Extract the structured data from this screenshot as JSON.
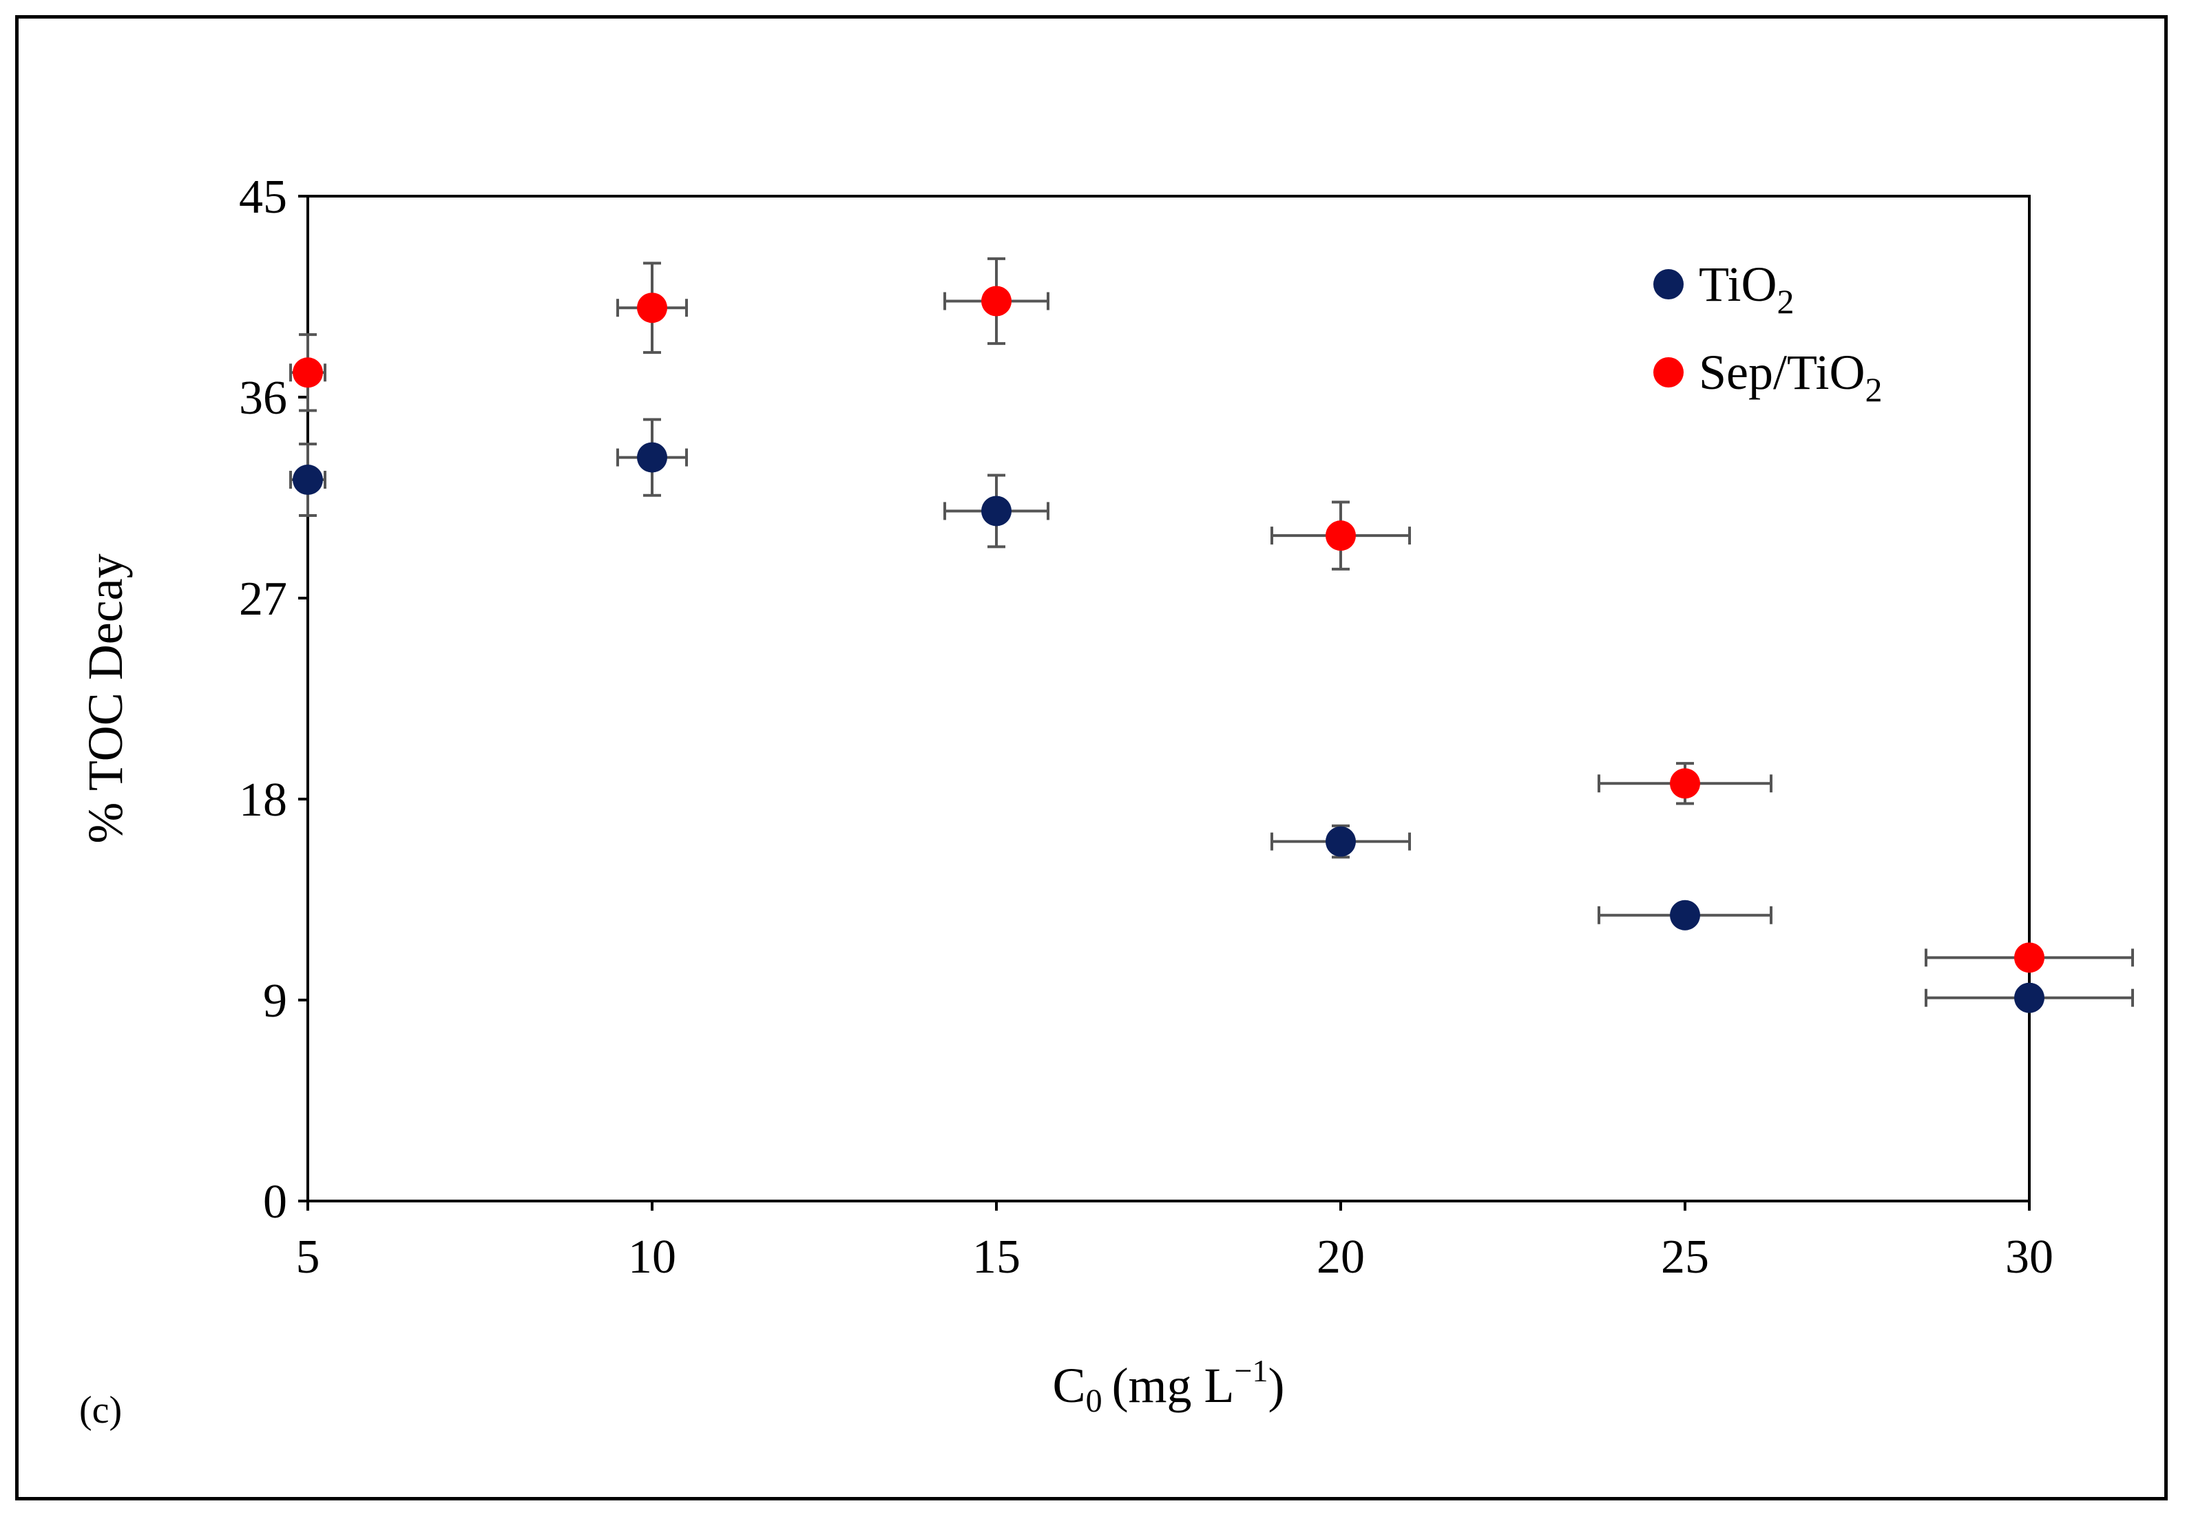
{
  "panel_label": "(c)",
  "chart_data": {
    "type": "scatter",
    "title": "",
    "xlabel_main": "C",
    "xlabel_sub": "0",
    "xlabel_unit": "(mg  L",
    "xlabel_sup": "−1",
    "xlabel_close": ")",
    "ylabel": "% TOC Decay",
    "xlim": [
      5,
      30
    ],
    "ylim": [
      0,
      45
    ],
    "x_ticks": [
      5,
      10,
      15,
      20,
      25,
      30
    ],
    "y_ticks": [
      0,
      9,
      18,
      27,
      36,
      45
    ],
    "grid": false,
    "legend_position": "top-right",
    "series": [
      {
        "name": "TiO2",
        "label_main": "TiO",
        "label_sub": "2",
        "color": "#0a1f5c",
        "points": [
          {
            "x": 5,
            "y": 32.3,
            "yerr": 1.6,
            "xerr": 0.25
          },
          {
            "x": 10,
            "y": 33.3,
            "yerr": 1.7,
            "xerr": 0.5
          },
          {
            "x": 15,
            "y": 30.9,
            "yerr": 1.6,
            "xerr": 0.75
          },
          {
            "x": 20,
            "y": 16.1,
            "yerr": 0.7,
            "xerr": 1.0
          },
          {
            "x": 25,
            "y": 12.8,
            "yerr": 0.3,
            "xerr": 1.25
          },
          {
            "x": 30,
            "y": 9.1,
            "yerr": 0.3,
            "xerr": 1.5
          }
        ]
      },
      {
        "name": "Sep/TiO2",
        "label_main": "Sep/TiO",
        "label_sub": "2",
        "color": "#ff0000",
        "points": [
          {
            "x": 5,
            "y": 37.1,
            "yerr": 1.7,
            "xerr": 0.25
          },
          {
            "x": 10,
            "y": 40.0,
            "yerr": 2.0,
            "xerr": 0.5
          },
          {
            "x": 15,
            "y": 40.3,
            "yerr": 1.9,
            "xerr": 0.75
          },
          {
            "x": 20,
            "y": 29.8,
            "yerr": 1.5,
            "xerr": 1.0
          },
          {
            "x": 25,
            "y": 18.7,
            "yerr": 0.9,
            "xerr": 1.25
          },
          {
            "x": 30,
            "y": 10.9,
            "yerr": 0.3,
            "xerr": 1.5
          }
        ]
      }
    ]
  }
}
